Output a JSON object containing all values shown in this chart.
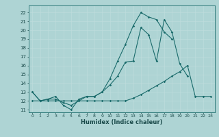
{
  "xlabel": "Humidex (Indice chaleur)",
  "xlim": [
    -0.5,
    23.5
  ],
  "ylim": [
    10.7,
    22.8
  ],
  "yticks": [
    11,
    12,
    13,
    14,
    15,
    16,
    17,
    18,
    19,
    20,
    21,
    22
  ],
  "xticks": [
    0,
    1,
    2,
    3,
    4,
    5,
    6,
    7,
    8,
    9,
    10,
    11,
    12,
    13,
    14,
    15,
    16,
    17,
    18,
    19,
    20,
    21,
    22,
    23
  ],
  "background_color": "#aed4d4",
  "line_color": "#1a6b6b",
  "line1_x": [
    0,
    1,
    2,
    3,
    4,
    5,
    6,
    7,
    8,
    9,
    10,
    11,
    12,
    13,
    14,
    15,
    16,
    17,
    18,
    19,
    20
  ],
  "line1_y": [
    13.0,
    12.0,
    12.2,
    12.5,
    11.5,
    11.0,
    12.2,
    12.5,
    12.5,
    13.0,
    13.8,
    14.8,
    16.4,
    16.5,
    20.3,
    19.5,
    16.5,
    21.2,
    19.8,
    16.2,
    14.8
  ],
  "line2_x": [
    0,
    1,
    2,
    3,
    4,
    5,
    6,
    7,
    8,
    9,
    10,
    11,
    12,
    13,
    14,
    15,
    16,
    17,
    18
  ],
  "line2_y": [
    13.0,
    12.0,
    12.2,
    12.2,
    11.8,
    11.5,
    12.0,
    12.5,
    12.5,
    13.0,
    14.5,
    16.5,
    18.4,
    20.5,
    22.0,
    21.5,
    21.2,
    19.8,
    19.0
  ],
  "line3_x": [
    0,
    1,
    2,
    3,
    4,
    5,
    6,
    7,
    8,
    9,
    10,
    11,
    12,
    13,
    14,
    15,
    16,
    17,
    18,
    19,
    20,
    21,
    22,
    23
  ],
  "line3_y": [
    12.0,
    12.0,
    12.0,
    12.0,
    12.0,
    12.0,
    12.0,
    12.0,
    12.0,
    12.0,
    12.0,
    12.0,
    12.0,
    12.3,
    12.7,
    13.2,
    13.7,
    14.2,
    14.8,
    15.3,
    16.0,
    12.5,
    12.5,
    12.5
  ]
}
